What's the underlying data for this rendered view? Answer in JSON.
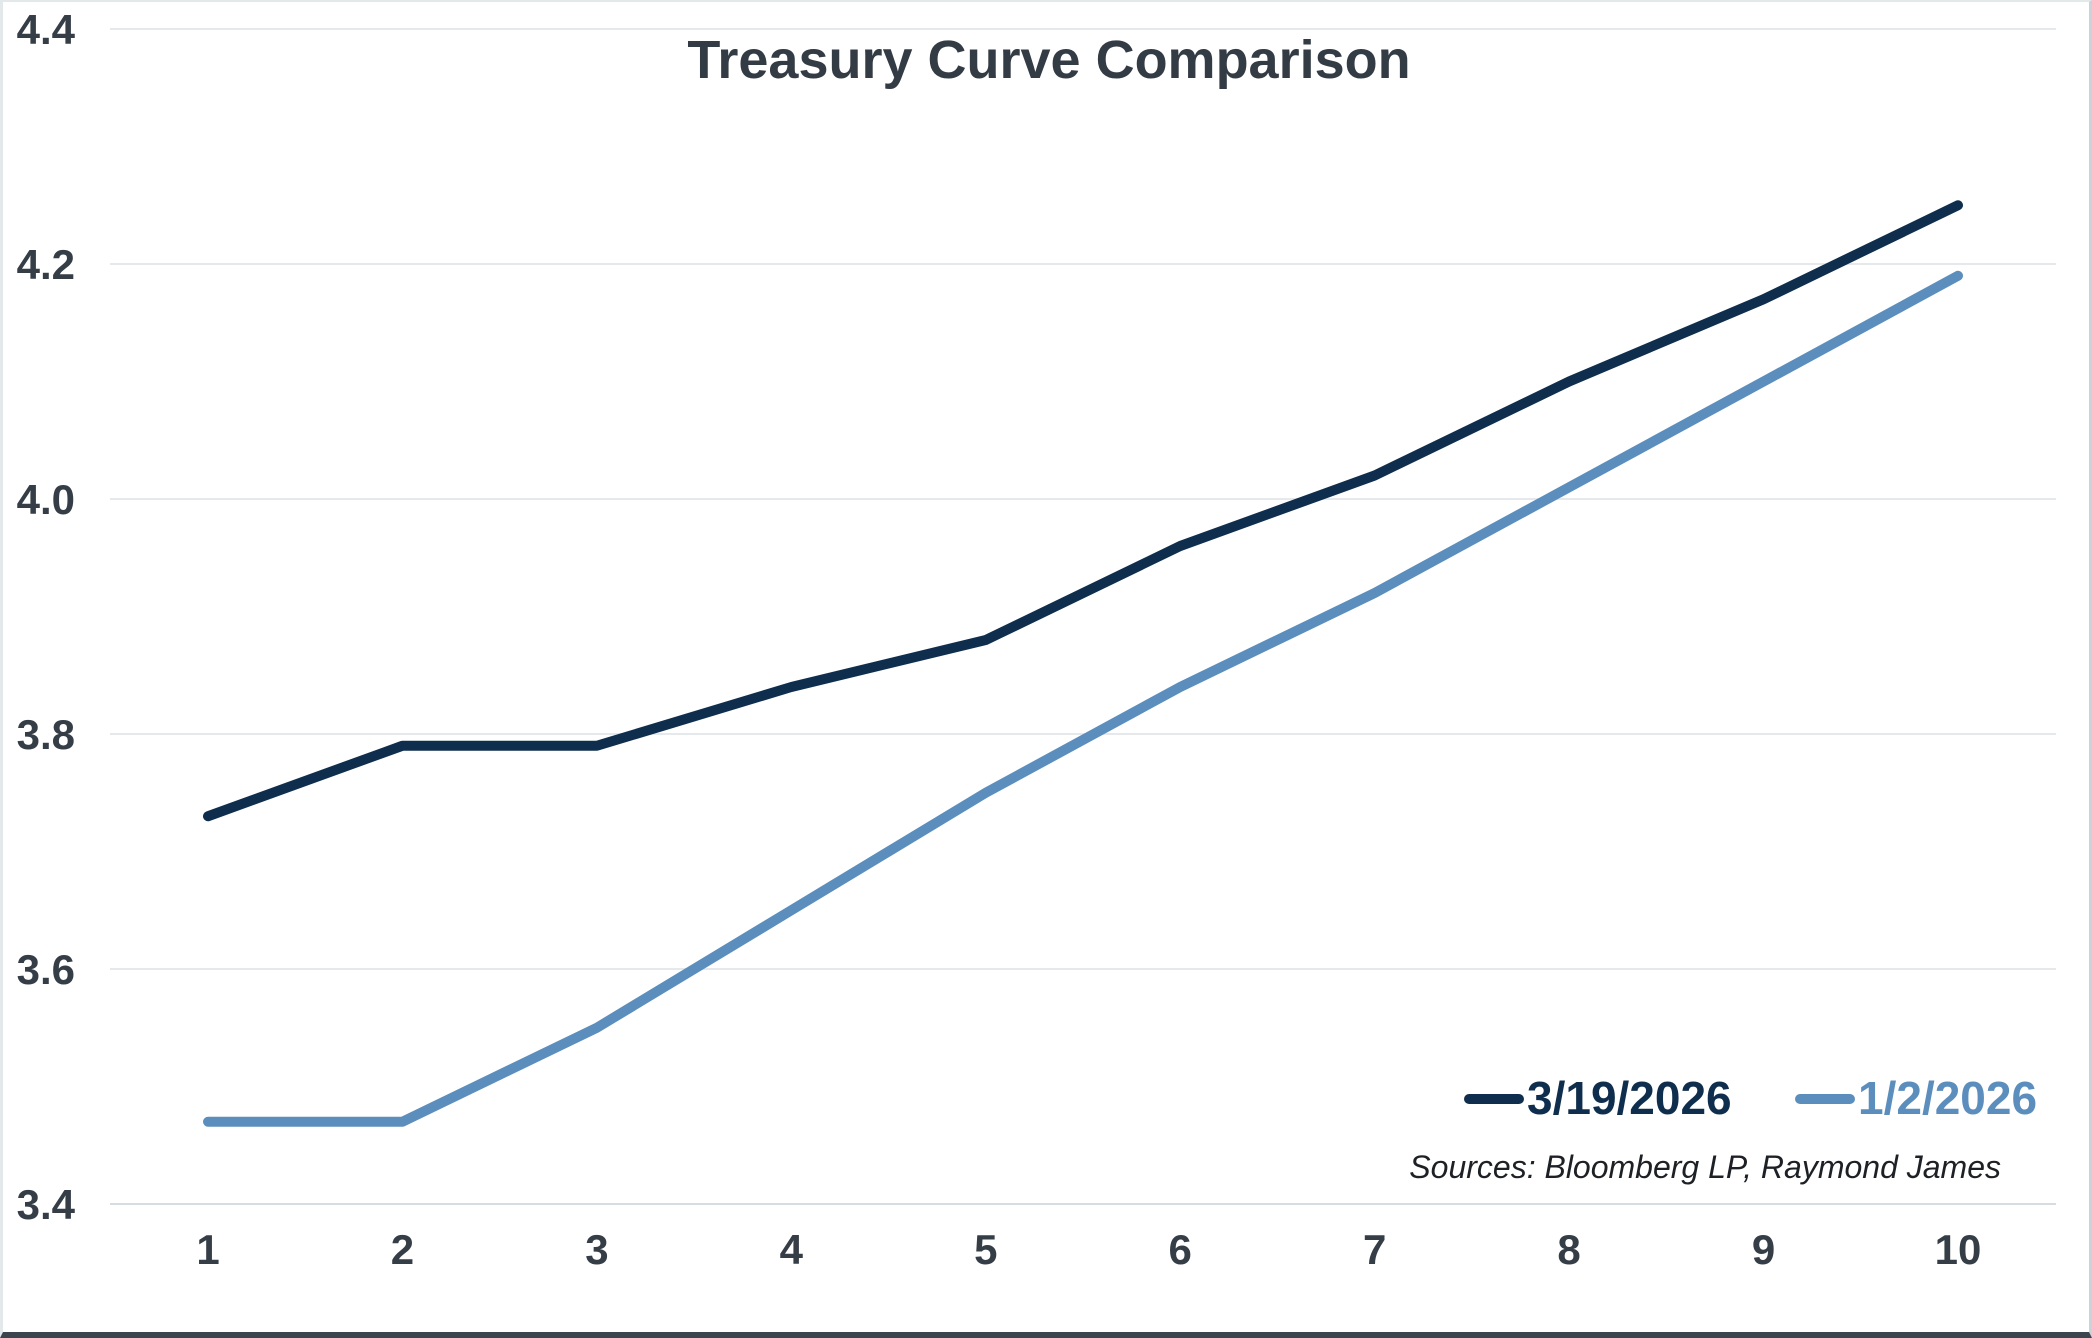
{
  "chart_data": {
    "type": "line",
    "title": "Treasury Curve Comparison",
    "xlabel": "",
    "ylabel": "",
    "x": [
      1,
      2,
      3,
      4,
      5,
      6,
      7,
      8,
      9,
      10
    ],
    "series": [
      {
        "name": "3/19/2026",
        "color": "#0f2e4d",
        "values": [
          3.73,
          3.79,
          3.79,
          3.84,
          3.88,
          3.96,
          4.02,
          4.1,
          4.17,
          4.25
        ]
      },
      {
        "name": "1/2/2026",
        "color": "#5b8ebd",
        "values": [
          3.47,
          3.47,
          3.55,
          3.65,
          3.75,
          3.84,
          3.92,
          4.01,
          4.1,
          4.19
        ]
      }
    ],
    "ylim": [
      3.4,
      4.4
    ],
    "yticks": [
      3.4,
      3.6,
      3.8,
      4.0,
      4.2,
      4.4
    ],
    "ytick_labels": [
      "3.4",
      "3.6",
      "3.8",
      "4.0",
      "4.2",
      "4.4"
    ],
    "grid": "horizontal",
    "legend_position": "bottom-right-inside",
    "source_note": "Sources: Bloomberg LP, Raymond James"
  },
  "text_color": "#353d46",
  "background": "#ffffff"
}
